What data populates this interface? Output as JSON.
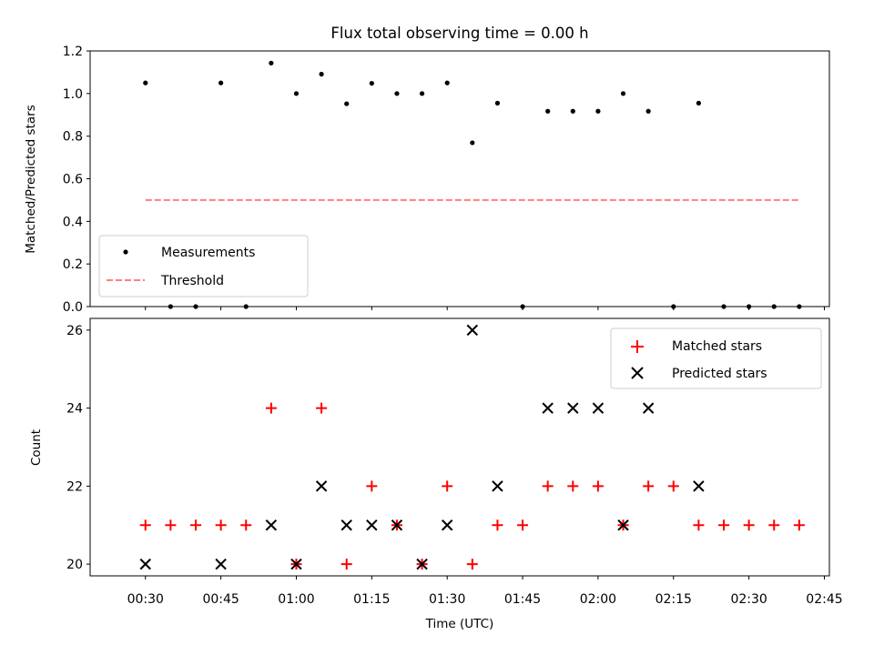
{
  "chart_data": [
    {
      "type": "scatter",
      "title": "Flux total observing time = 0.00 h",
      "xlabel": "",
      "ylabel": "Matched/Predicted stars",
      "ylim": [
        0,
        1.2
      ],
      "yticks": [
        "0.0",
        "0.2",
        "0.4",
        "0.6",
        "0.8",
        "1.0",
        "1.2"
      ],
      "xlim": [
        "00:19",
        "02:46"
      ],
      "x_tick_labels": "hidden (shared x axis)",
      "grid": false,
      "legend_position": "lower-left",
      "series": [
        {
          "name": "Measurements",
          "marker": "dot",
          "color": "#000000",
          "points": [
            [
              "00:30",
              1.05
            ],
            [
              "00:35",
              0.0
            ],
            [
              "00:40",
              0.0
            ],
            [
              "00:45",
              1.05
            ],
            [
              "00:50",
              0.0
            ],
            [
              "00:55",
              1.143
            ],
            [
              "01:00",
              1.0
            ],
            [
              "01:05",
              1.091
            ],
            [
              "01:10",
              0.952
            ],
            [
              "01:15",
              1.048
            ],
            [
              "01:20",
              1.0
            ],
            [
              "01:25",
              1.0
            ],
            [
              "01:30",
              1.05
            ],
            [
              "01:35",
              0.769
            ],
            [
              "01:40",
              0.955
            ],
            [
              "01:45",
              0.0
            ],
            [
              "01:50",
              0.917
            ],
            [
              "01:55",
              0.917
            ],
            [
              "02:00",
              0.917
            ],
            [
              "02:05",
              1.0
            ],
            [
              "02:10",
              0.917
            ],
            [
              "02:15",
              0.0
            ],
            [
              "02:20",
              0.955
            ],
            [
              "02:25",
              0.0
            ],
            [
              "02:30",
              0.0
            ],
            [
              "02:35",
              0.0
            ],
            [
              "02:40",
              0.0
            ]
          ]
        },
        {
          "name": "Threshold",
          "style": "dashed line",
          "color": "#ff7f7f",
          "points": [
            [
              "00:30",
              0.5
            ],
            [
              "02:40",
              0.5
            ]
          ]
        }
      ]
    },
    {
      "type": "scatter",
      "title": "",
      "xlabel": "Time (UTC)",
      "ylabel": "Count",
      "ylim": [
        19.7,
        26.3
      ],
      "yticks": [
        "20",
        "22",
        "24",
        "26"
      ],
      "xlim": [
        "00:19",
        "02:46"
      ],
      "xticks": [
        "00:30",
        "00:45",
        "01:00",
        "01:15",
        "01:30",
        "01:45",
        "02:00",
        "02:15",
        "02:30",
        "02:45"
      ],
      "grid": false,
      "legend_position": "upper-right",
      "series": [
        {
          "name": "Matched stars",
          "marker": "plus",
          "color": "#ff0000",
          "points": [
            [
              "00:30",
              21
            ],
            [
              "00:35",
              21
            ],
            [
              "00:40",
              21
            ],
            [
              "00:45",
              21
            ],
            [
              "00:50",
              21
            ],
            [
              "00:55",
              24
            ],
            [
              "01:00",
              20
            ],
            [
              "01:05",
              24
            ],
            [
              "01:10",
              20
            ],
            [
              "01:15",
              22
            ],
            [
              "01:20",
              21
            ],
            [
              "01:25",
              20
            ],
            [
              "01:30",
              22
            ],
            [
              "01:35",
              20
            ],
            [
              "01:40",
              21
            ],
            [
              "01:45",
              21
            ],
            [
              "01:50",
              22
            ],
            [
              "01:55",
              22
            ],
            [
              "02:00",
              22
            ],
            [
              "02:05",
              21
            ],
            [
              "02:10",
              22
            ],
            [
              "02:15",
              22
            ],
            [
              "02:20",
              21
            ],
            [
              "02:25",
              21
            ],
            [
              "02:30",
              21
            ],
            [
              "02:35",
              21
            ],
            [
              "02:40",
              21
            ]
          ]
        },
        {
          "name": "Predicted stars",
          "marker": "x",
          "color": "#000000",
          "points": [
            [
              "00:30",
              20
            ],
            [
              "00:45",
              20
            ],
            [
              "00:55",
              21
            ],
            [
              "01:00",
              20
            ],
            [
              "01:05",
              22
            ],
            [
              "01:10",
              21
            ],
            [
              "01:15",
              21
            ],
            [
              "01:20",
              21
            ],
            [
              "01:25",
              20
            ],
            [
              "01:30",
              21
            ],
            [
              "01:35",
              26
            ],
            [
              "01:40",
              22
            ],
            [
              "01:50",
              24
            ],
            [
              "01:55",
              24
            ],
            [
              "02:00",
              24
            ],
            [
              "02:05",
              21
            ],
            [
              "02:10",
              24
            ],
            [
              "02:20",
              22
            ]
          ]
        }
      ]
    }
  ]
}
